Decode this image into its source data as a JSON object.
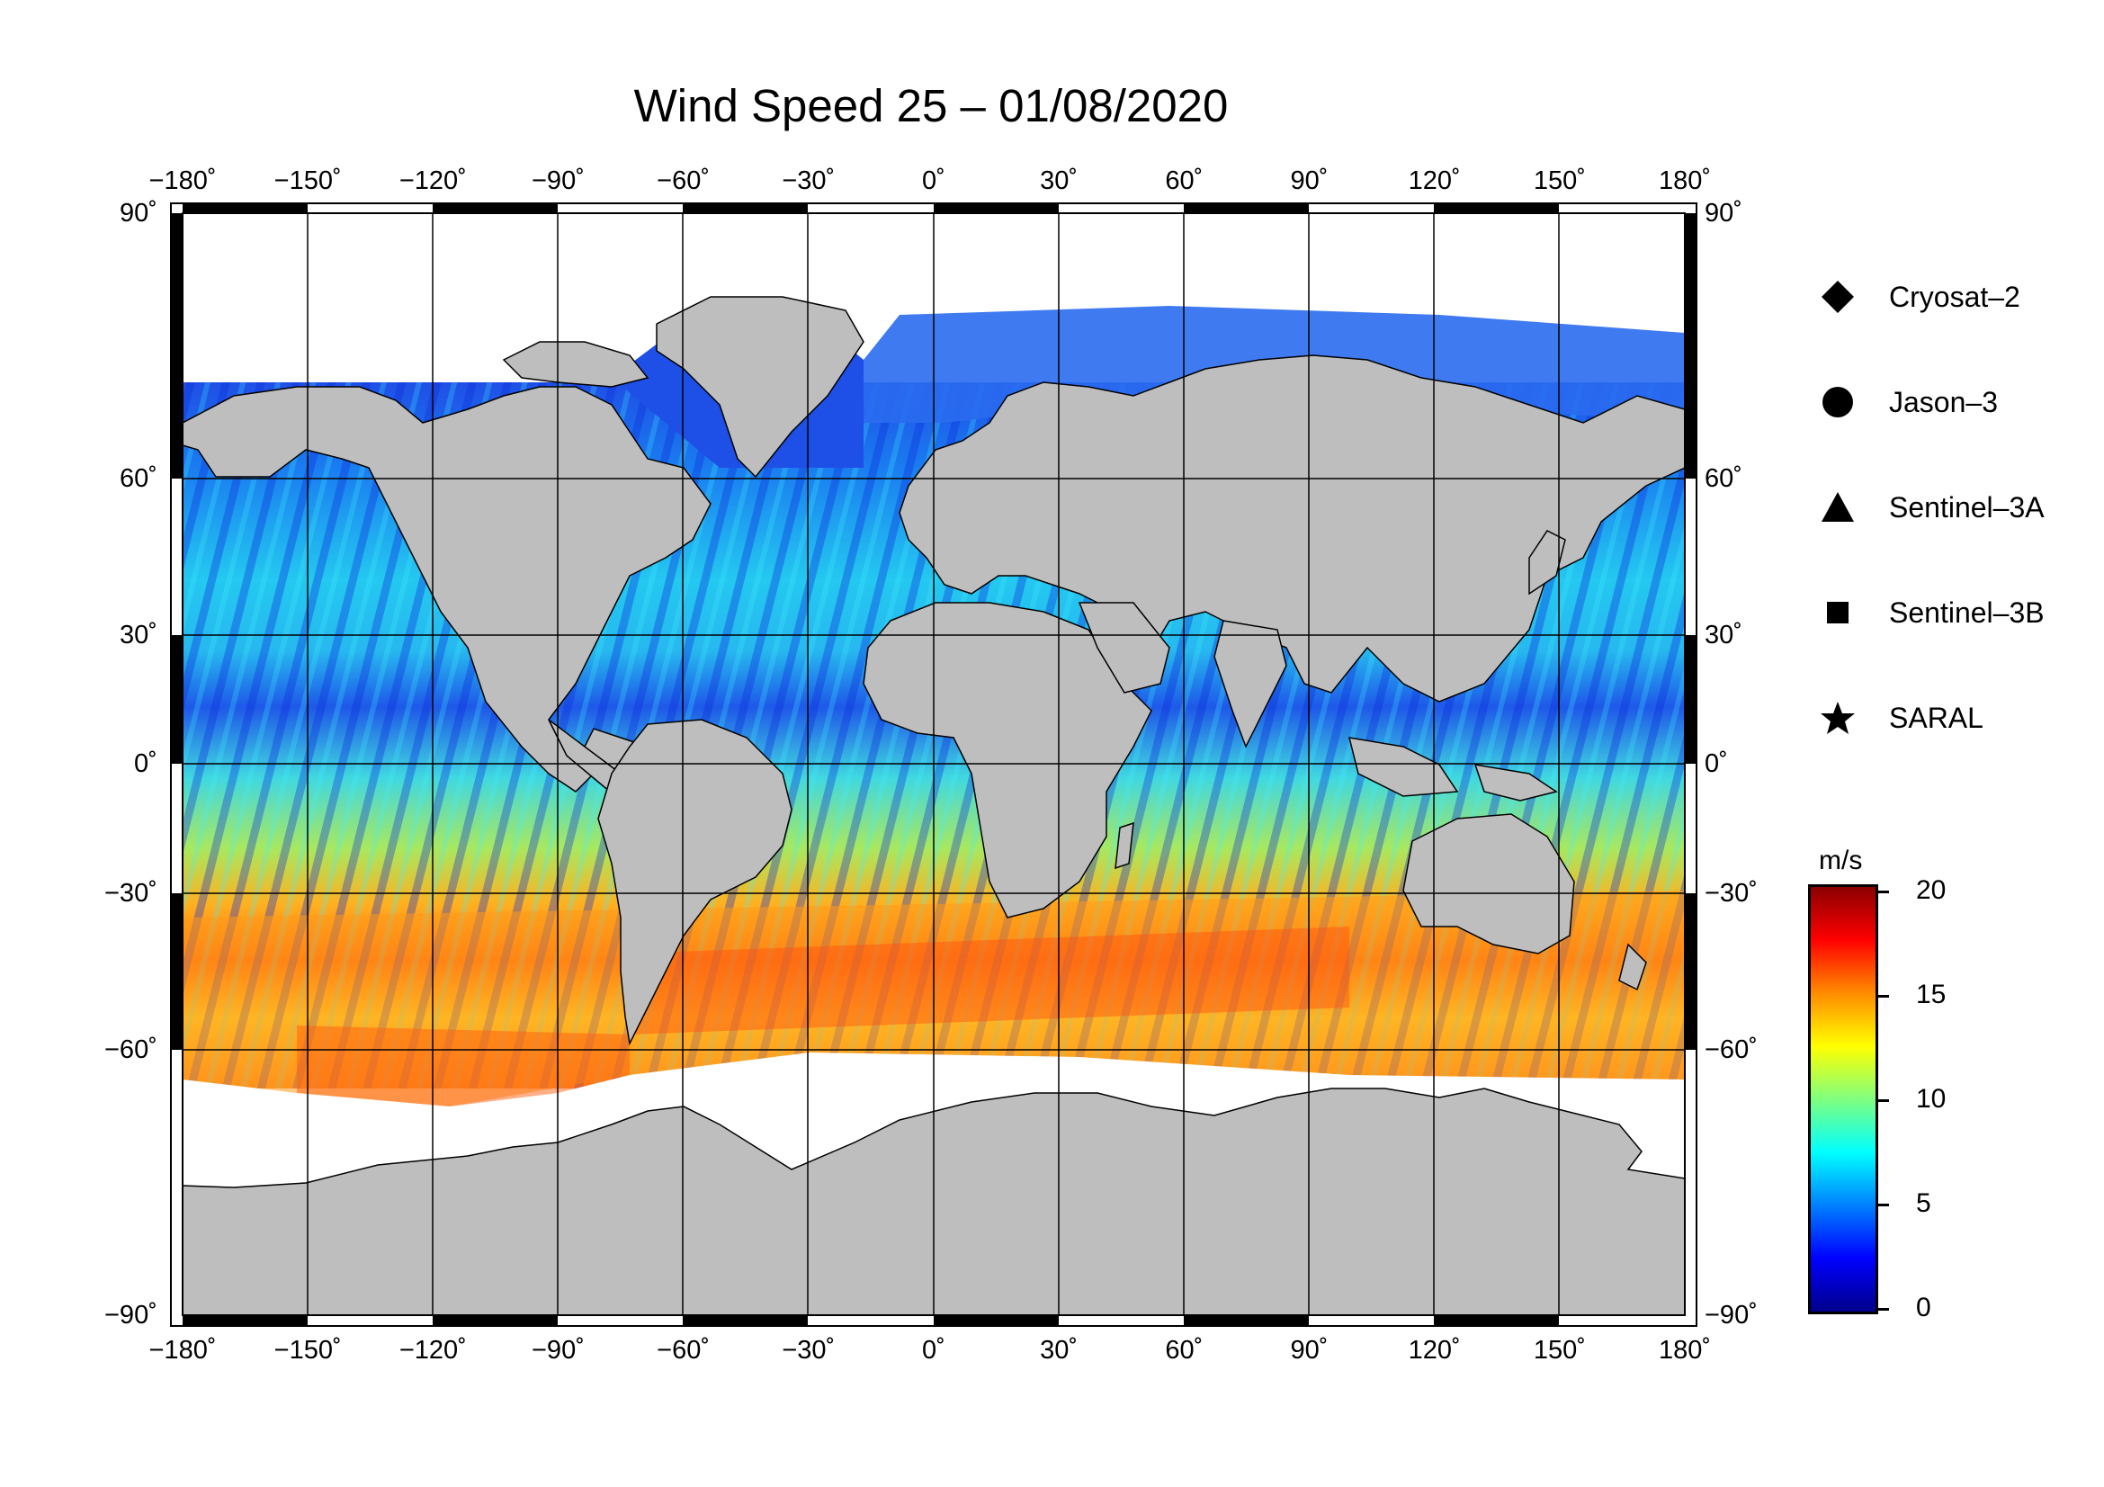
{
  "title": "Wind Speed 25 – 01/08/2020",
  "map": {
    "projection": "equirectangular",
    "lon_range": [
      -180,
      180
    ],
    "lat_range": [
      -90,
      90
    ],
    "lon_ticks": [
      "−180˚",
      "−150˚",
      "−120˚",
      "−90˚",
      "−60˚",
      "−30˚",
      "0˚",
      "30˚",
      "60˚",
      "90˚",
      "120˚",
      "150˚",
      "180˚"
    ],
    "lat_ticks": [
      "90˚",
      "60˚",
      "30˚",
      "0˚",
      "−30˚",
      "−60˚",
      "−90˚"
    ],
    "land_color": "#bebebe",
    "ice_color": "#ffffff"
  },
  "legend": {
    "items": [
      {
        "symbol": "diamond",
        "label": "Cryosat–2"
      },
      {
        "symbol": "circle",
        "label": "Jason–3"
      },
      {
        "symbol": "triangle",
        "label": "Sentinel–3A"
      },
      {
        "symbol": "square",
        "label": "Sentinel–3B"
      },
      {
        "symbol": "star",
        "label": "SARAL"
      }
    ]
  },
  "colorbar": {
    "unit": "m/s",
    "range": [
      0,
      20
    ],
    "ticks": [
      "20",
      "15",
      "10",
      "5",
      "0"
    ],
    "colors": [
      "#8b0000",
      "#ff0000",
      "#ff8c00",
      "#ffff00",
      "#7fff7f",
      "#00ffff",
      "#0080ff",
      "#0000ff",
      "#00008b"
    ]
  }
}
